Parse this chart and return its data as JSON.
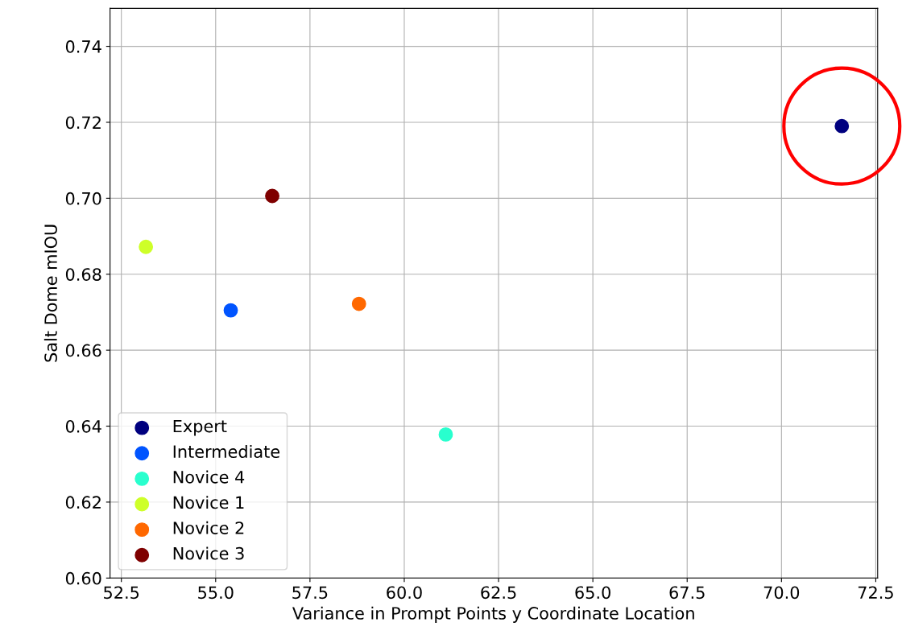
{
  "chart_data": {
    "type": "scatter",
    "xlabel": "Variance in Prompt Points y Coordinate Location",
    "ylabel": "Salt Dome mIOU",
    "series": [
      {
        "name": "Expert",
        "color": "#00007f",
        "x": [
          71.6
        ],
        "values": [
          0.719
        ]
      },
      {
        "name": "Intermediate",
        "color": "#0054ff",
        "x": [
          55.4
        ],
        "values": [
          0.6705
        ]
      },
      {
        "name": "Novice 4",
        "color": "#29ffce",
        "x": [
          61.1
        ],
        "values": [
          0.6378
        ]
      },
      {
        "name": "Novice 1",
        "color": "#ceff29",
        "x": [
          53.15
        ],
        "values": [
          0.6872
        ]
      },
      {
        "name": "Novice 2",
        "color": "#ff6800",
        "x": [
          58.8
        ],
        "values": [
          0.6722
        ]
      },
      {
        "name": "Novice 3",
        "color": "#7f0000",
        "x": [
          56.5
        ],
        "values": [
          0.7006
        ]
      }
    ],
    "xlim": [
      52.2,
      72.55
    ],
    "xticks": [
      {
        "value": 52.5,
        "label": "52.5"
      },
      {
        "value": 55,
        "label": "55.0"
      },
      {
        "value": 57.5,
        "label": "57.5"
      },
      {
        "value": 60,
        "label": "60.0"
      },
      {
        "value": 62.5,
        "label": "62.5"
      },
      {
        "value": 65,
        "label": "65.0"
      },
      {
        "value": 67.5,
        "label": "67.5"
      },
      {
        "value": 70,
        "label": "70.0"
      },
      {
        "value": 72.5,
        "label": "72.5"
      }
    ],
    "ylim": [
      0.6,
      0.75
    ],
    "yticks": [
      {
        "value": 0.6,
        "label": "0.60"
      },
      {
        "value": 0.62,
        "label": "0.62"
      },
      {
        "value": 0.64,
        "label": "0.64"
      },
      {
        "value": 0.66,
        "label": "0.66"
      },
      {
        "value": 0.68,
        "label": "0.68"
      },
      {
        "value": 0.7,
        "label": "0.70"
      },
      {
        "value": 0.72,
        "label": "0.72"
      },
      {
        "value": 0.74,
        "label": "0.74"
      }
    ],
    "grid": true,
    "legend": "bottom left",
    "marker": "circle"
  }
}
